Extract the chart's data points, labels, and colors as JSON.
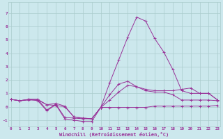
{
  "xlabel": "Windchill (Refroidissement éolien,°C)",
  "x_ticks": [
    0,
    1,
    2,
    3,
    4,
    5,
    6,
    7,
    8,
    9,
    10,
    11,
    12,
    13,
    14,
    15,
    16,
    17,
    18,
    19,
    20,
    21,
    22,
    23
  ],
  "ylim": [
    -1.5,
    7.8
  ],
  "xlim": [
    -0.3,
    23.3
  ],
  "background_color": "#cce8ed",
  "line_color": "#993399",
  "grid_color": "#aacccc",
  "series": [
    [
      0.55,
      0.45,
      0.55,
      0.55,
      0.15,
      0.25,
      0.05,
      -0.75,
      -0.85,
      -0.9,
      -0.05,
      1.8,
      3.5,
      5.2,
      6.7,
      6.4,
      5.1,
      4.1,
      2.8,
      1.2,
      1.0,
      1.0,
      1.0,
      0.5
    ],
    [
      0.55,
      0.45,
      0.55,
      0.55,
      -0.25,
      0.2,
      -0.8,
      -0.85,
      -0.9,
      -0.9,
      -0.05,
      0.5,
      1.1,
      1.6,
      1.5,
      1.3,
      1.2,
      1.2,
      1.2,
      1.3,
      1.4,
      1.0,
      1.0,
      0.5
    ],
    [
      0.55,
      0.45,
      0.5,
      0.5,
      0.15,
      0.1,
      0.0,
      -0.75,
      -0.85,
      -0.9,
      -0.05,
      0.9,
      1.7,
      1.9,
      1.5,
      1.2,
      1.1,
      1.1,
      0.9,
      0.5,
      0.5,
      0.5,
      0.5,
      0.45
    ],
    [
      0.55,
      0.45,
      0.55,
      0.45,
      -0.3,
      0.15,
      -0.9,
      -1.0,
      -1.1,
      -1.1,
      -0.05,
      -0.05,
      -0.05,
      -0.05,
      -0.05,
      -0.05,
      0.05,
      0.05,
      0.05,
      0.05,
      0.05,
      0.05,
      0.05,
      0.1
    ]
  ]
}
